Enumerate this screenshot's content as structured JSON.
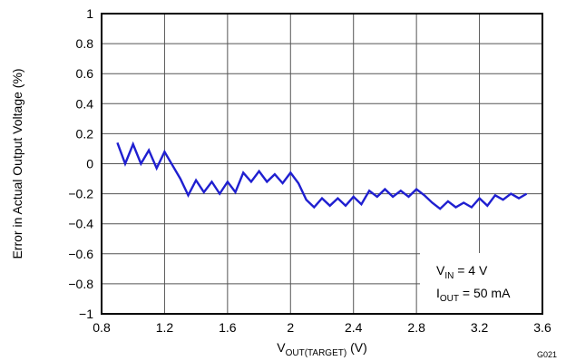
{
  "chart_data": {
    "type": "line",
    "xlabel": {
      "main": "V",
      "sub": "OUT(TARGET)",
      "unit": " (V)"
    },
    "ylabel": "Error in Actual Output Voltage (%)",
    "xlim": [
      0.8,
      3.6
    ],
    "ylim": [
      -1,
      1
    ],
    "x_ticks": [
      "0.8",
      "1.2",
      "1.6",
      "2",
      "2.4",
      "2.8",
      "3.2",
      "3.6"
    ],
    "y_ticks": [
      "1",
      "0.8",
      "0.6",
      "0.4",
      "0.2",
      "0",
      "−0.2",
      "−0.4",
      "−0.6",
      "−0.8",
      "−1"
    ],
    "grid": true,
    "series": [
      {
        "color": "#1f1fd0",
        "x": [
          0.9,
          0.95,
          1.0,
          1.05,
          1.1,
          1.15,
          1.2,
          1.25,
          1.3,
          1.35,
          1.4,
          1.45,
          1.5,
          1.55,
          1.6,
          1.65,
          1.7,
          1.75,
          1.8,
          1.85,
          1.9,
          1.95,
          2.0,
          2.05,
          2.1,
          2.15,
          2.2,
          2.25,
          2.3,
          2.35,
          2.4,
          2.45,
          2.5,
          2.55,
          2.6,
          2.65,
          2.7,
          2.75,
          2.8,
          2.85,
          2.9,
          2.95,
          3.0,
          3.05,
          3.1,
          3.15,
          3.2,
          3.25,
          3.3,
          3.35,
          3.4,
          3.45,
          3.5
        ],
        "y": [
          0.14,
          0.0,
          0.13,
          0.0,
          0.09,
          -0.03,
          0.08,
          -0.01,
          -0.1,
          -0.21,
          -0.11,
          -0.19,
          -0.12,
          -0.2,
          -0.12,
          -0.19,
          -0.06,
          -0.12,
          -0.05,
          -0.12,
          -0.07,
          -0.13,
          -0.06,
          -0.13,
          -0.24,
          -0.29,
          -0.23,
          -0.28,
          -0.23,
          -0.28,
          -0.22,
          -0.27,
          -0.18,
          -0.22,
          -0.17,
          -0.22,
          -0.18,
          -0.22,
          -0.17,
          -0.21,
          -0.26,
          -0.3,
          -0.25,
          -0.29,
          -0.26,
          -0.29,
          -0.23,
          -0.28,
          -0.21,
          -0.24,
          -0.2,
          -0.23,
          -0.2
        ]
      }
    ],
    "annotation": {
      "line1": {
        "main": "V",
        "sub": "IN",
        "rest": " = 4 V"
      },
      "line2": {
        "main": "I",
        "sub": "OUT",
        "rest": " = 50 mA"
      }
    },
    "figure_id": "G021"
  }
}
